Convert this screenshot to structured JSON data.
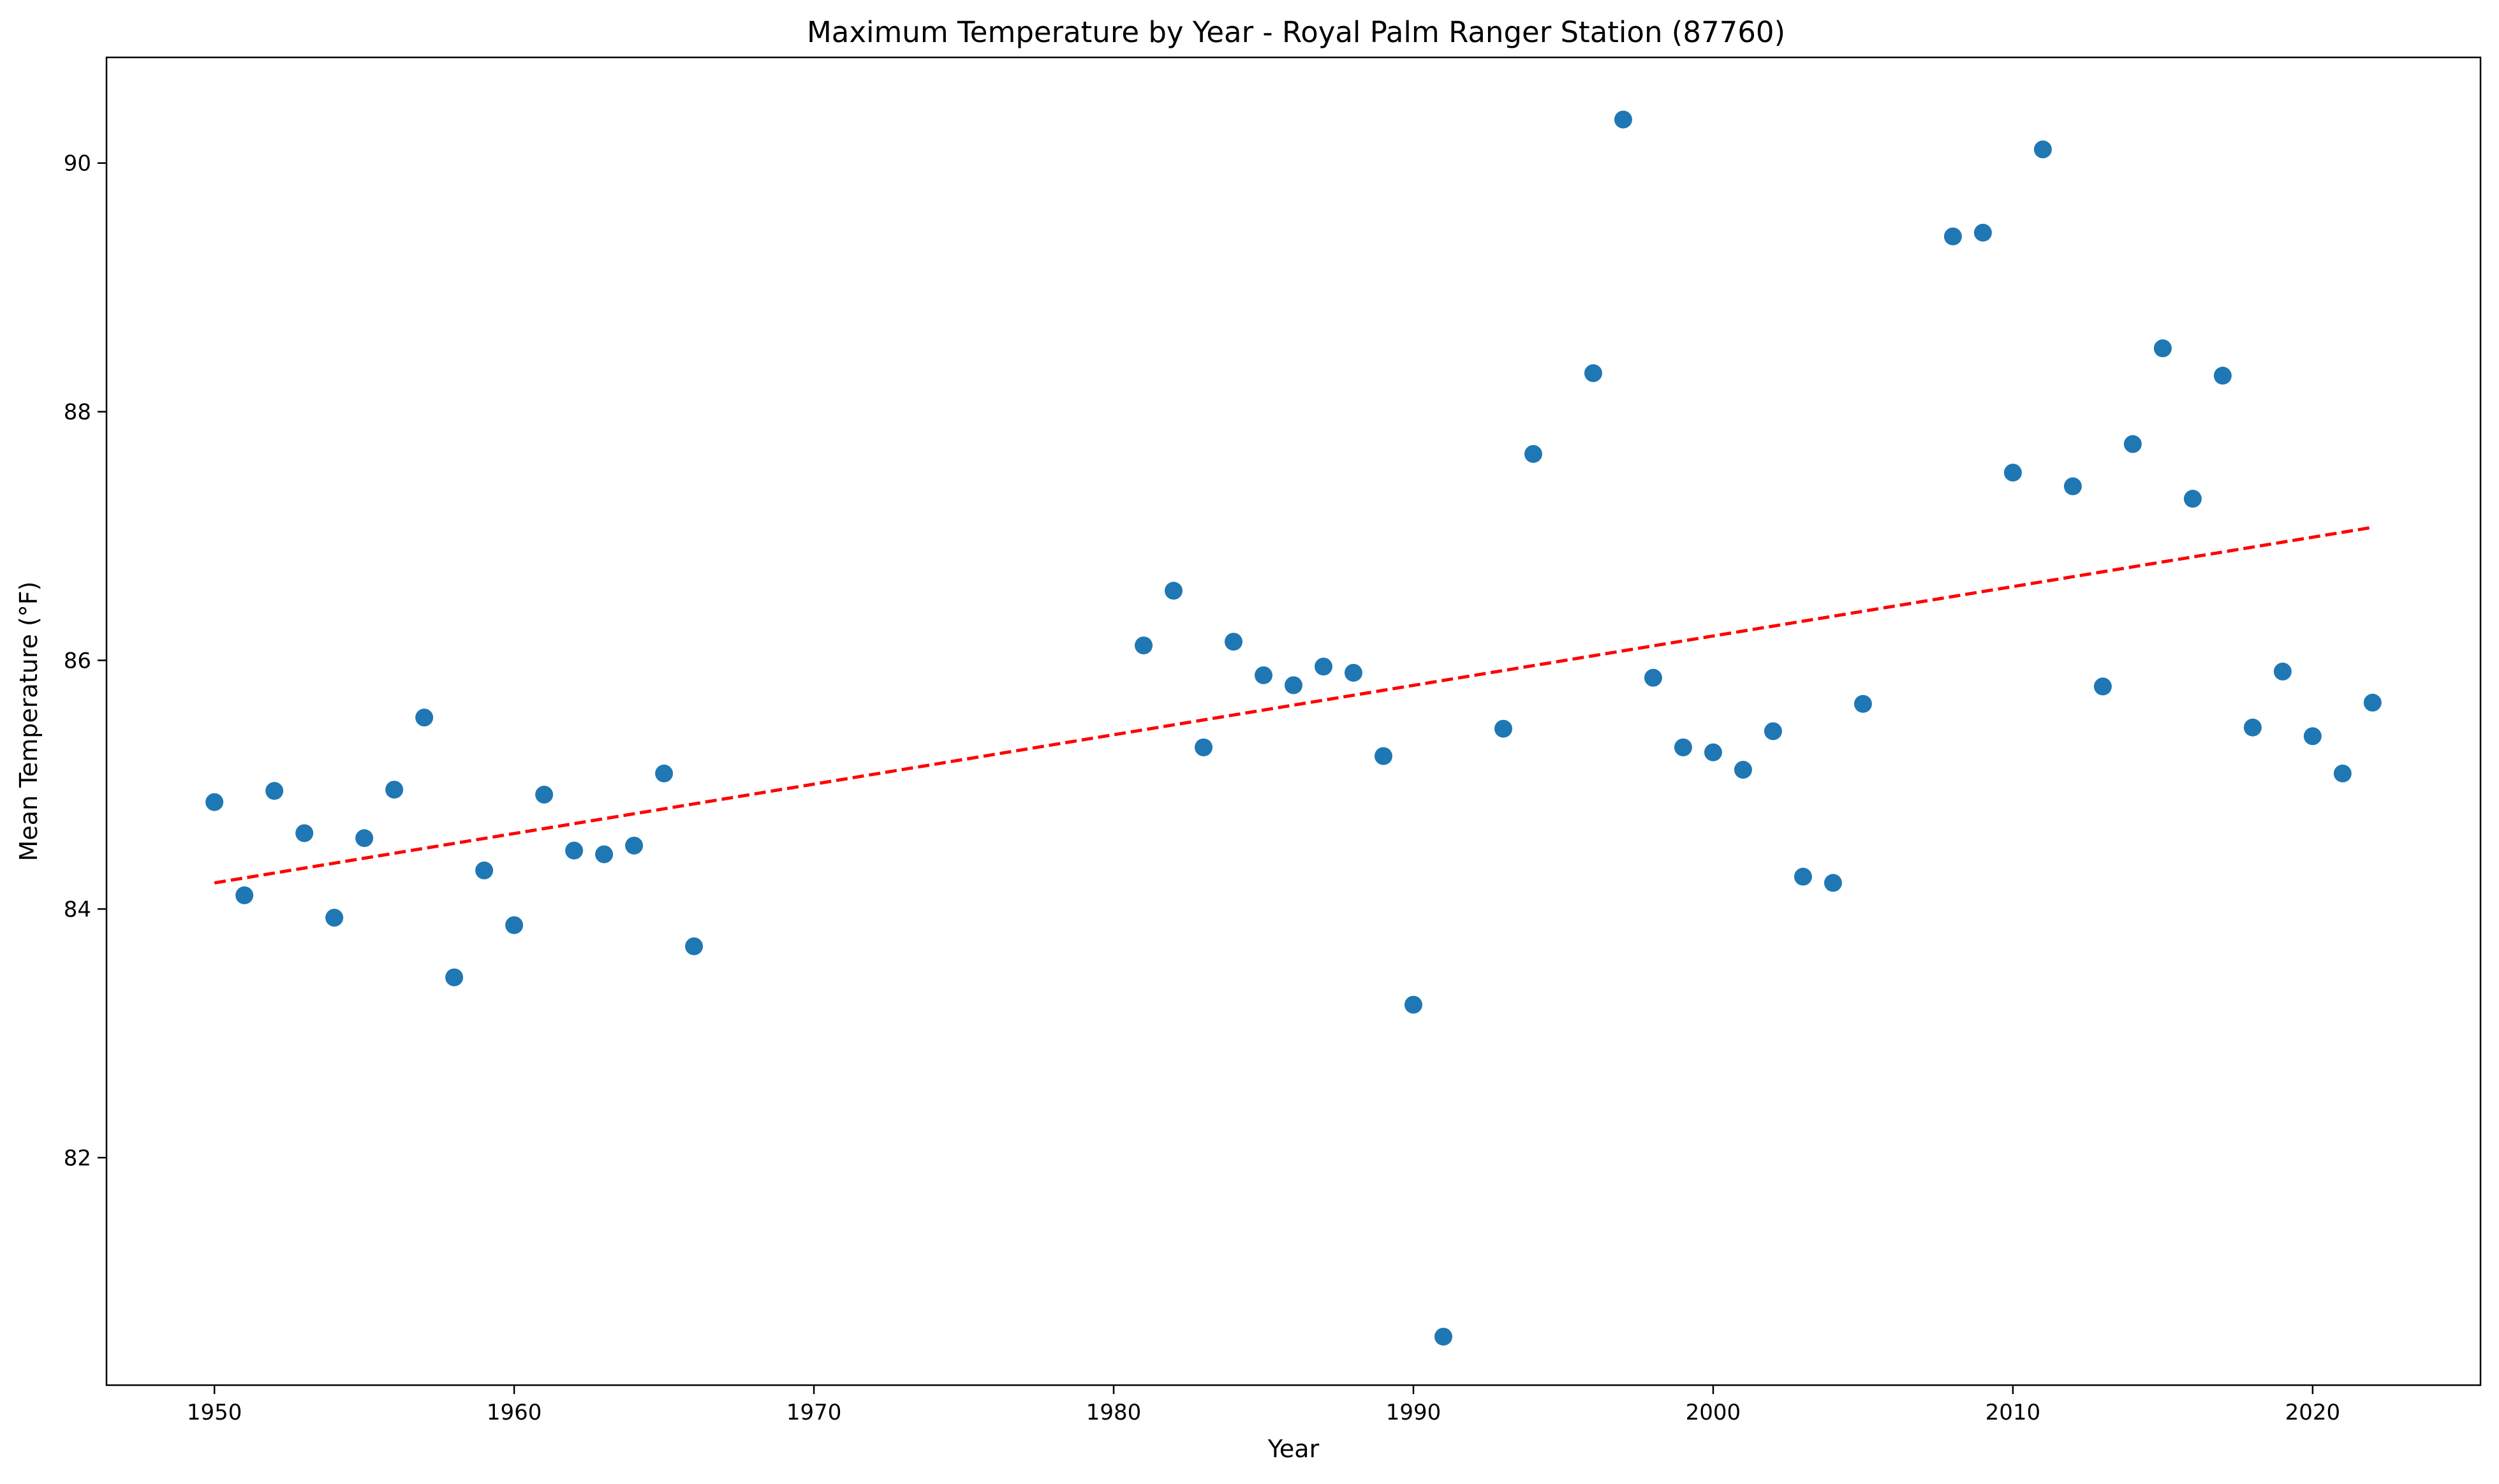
{
  "chart_data": {
    "type": "scatter",
    "title": "Maximum Temperature by Year - Royal Palm Ranger Station (87760)",
    "xlabel": "Year",
    "ylabel": "Mean Temperature (°F)",
    "xlim": [
      1946.4,
      2025.6
    ],
    "ylim": [
      80.17,
      90.85
    ],
    "xticks": [
      1950,
      1960,
      1970,
      1980,
      1990,
      2000,
      2010,
      2020
    ],
    "yticks": [
      82,
      84,
      86,
      88,
      90
    ],
    "grid": false,
    "legend": "none",
    "colors": {
      "points": "#1f77b4",
      "trend": "#ff0000"
    },
    "series": [
      {
        "values": [
          {
            "x": 1950,
            "y": 84.86
          },
          {
            "x": 1951,
            "y": 84.11
          },
          {
            "x": 1952,
            "y": 84.95
          },
          {
            "x": 1953,
            "y": 84.61
          },
          {
            "x": 1954,
            "y": 83.93
          },
          {
            "x": 1955,
            "y": 84.57
          },
          {
            "x": 1956,
            "y": 84.96
          },
          {
            "x": 1957,
            "y": 85.54
          },
          {
            "x": 1958,
            "y": 83.45
          },
          {
            "x": 1959,
            "y": 84.31
          },
          {
            "x": 1960,
            "y": 83.87
          },
          {
            "x": 1961,
            "y": 84.92
          },
          {
            "x": 1962,
            "y": 84.47
          },
          {
            "x": 1963,
            "y": 84.44
          },
          {
            "x": 1964,
            "y": 84.51
          },
          {
            "x": 1965,
            "y": 85.09
          },
          {
            "x": 1966,
            "y": 83.7
          },
          {
            "x": 1981,
            "y": 86.12
          },
          {
            "x": 1982,
            "y": 86.56
          },
          {
            "x": 1983,
            "y": 85.3
          },
          {
            "x": 1984,
            "y": 86.15
          },
          {
            "x": 1985,
            "y": 85.88
          },
          {
            "x": 1986,
            "y": 85.8
          },
          {
            "x": 1987,
            "y": 85.95
          },
          {
            "x": 1988,
            "y": 85.9
          },
          {
            "x": 1989,
            "y": 85.23
          },
          {
            "x": 1990,
            "y": 83.23
          },
          {
            "x": 1991,
            "y": 80.56
          },
          {
            "x": 1993,
            "y": 85.45
          },
          {
            "x": 1994,
            "y": 87.66
          },
          {
            "x": 1996,
            "y": 88.31
          },
          {
            "x": 1997,
            "y": 90.35
          },
          {
            "x": 1998,
            "y": 85.86
          },
          {
            "x": 1999,
            "y": 85.3
          },
          {
            "x": 2000,
            "y": 85.26
          },
          {
            "x": 2001,
            "y": 85.12
          },
          {
            "x": 2002,
            "y": 85.43
          },
          {
            "x": 2003,
            "y": 84.26
          },
          {
            "x": 2004,
            "y": 84.21
          },
          {
            "x": 2005,
            "y": 85.65
          },
          {
            "x": 2008,
            "y": 89.41
          },
          {
            "x": 2009,
            "y": 89.44
          },
          {
            "x": 2010,
            "y": 87.51
          },
          {
            "x": 2011,
            "y": 90.11
          },
          {
            "x": 2012,
            "y": 87.4
          },
          {
            "x": 2013,
            "y": 85.79
          },
          {
            "x": 2014,
            "y": 87.74
          },
          {
            "x": 2015,
            "y": 88.51
          },
          {
            "x": 2016,
            "y": 87.3
          },
          {
            "x": 2017,
            "y": 88.29
          },
          {
            "x": 2018,
            "y": 85.46
          },
          {
            "x": 2019,
            "y": 85.91
          },
          {
            "x": 2020,
            "y": 85.39
          },
          {
            "x": 2021,
            "y": 85.09
          },
          {
            "x": 2022,
            "y": 85.66
          }
        ]
      }
    ],
    "trendline": {
      "style": "dashed",
      "start": {
        "x": 1950,
        "y": 84.21
      },
      "end": {
        "x": 2022,
        "y": 87.07
      }
    }
  }
}
